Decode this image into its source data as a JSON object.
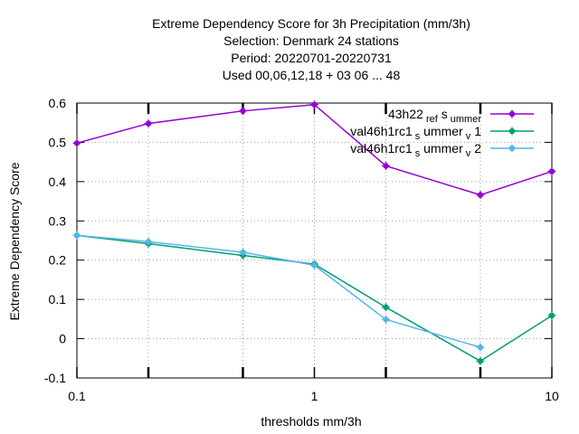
{
  "chart_data": {
    "type": "line",
    "title_lines": [
      "Extreme Dependency Score  for 3h Precipitation (mm/3h)",
      "Selection: Denmark      24 stations",
      "Period: 20220701-20220731",
      "Used  00,06,12,18  + 03 06 ... 48"
    ],
    "xlabel": "thresholds mm/3h",
    "ylabel": "Extreme Dependency Score",
    "x_scale": "log",
    "xlim": [
      0.1,
      10
    ],
    "ylim": [
      -0.1,
      0.6
    ],
    "x_ticks": [
      {
        "value": 0.1,
        "label": "0.1"
      },
      {
        "value": 1,
        "label": "1"
      },
      {
        "value": 10,
        "label": "10"
      }
    ],
    "x_minor_ticks": [
      0.2,
      0.5,
      2,
      5
    ],
    "y_ticks": [
      {
        "value": -0.1,
        "label": "-0.1"
      },
      {
        "value": 0,
        "label": "0"
      },
      {
        "value": 0.1,
        "label": "0.1"
      },
      {
        "value": 0.2,
        "label": "0.2"
      },
      {
        "value": 0.3,
        "label": "0.3"
      },
      {
        "value": 0.4,
        "label": "0.4"
      },
      {
        "value": 0.5,
        "label": "0.5"
      },
      {
        "value": 0.6,
        "label": "0.6"
      }
    ],
    "grid": true,
    "legend_position": "top-right",
    "series": [
      {
        "name_base": "43h22",
        "name_parts": [
          {
            "text": "ref",
            "sub": true
          },
          {
            "text": "s",
            "sub": false
          },
          {
            "text": "ummer",
            "sub": true
          }
        ],
        "color": "#9400d3",
        "x": [
          0.1,
          0.2,
          0.5,
          1,
          2,
          5,
          10
        ],
        "y": [
          0.498,
          0.548,
          0.58,
          0.596,
          0.44,
          0.366,
          0.426
        ]
      },
      {
        "name_base": "val46h1rc1",
        "name_parts": [
          {
            "text": "s",
            "sub": true
          },
          {
            "text": "ummer",
            "sub": false
          },
          {
            "text": "v",
            "sub": true
          },
          {
            "text": "1",
            "sub": false
          }
        ],
        "color": "#009e73",
        "x": [
          0.1,
          0.2,
          0.5,
          1,
          2,
          5,
          10
        ],
        "y": [
          0.263,
          0.242,
          0.212,
          0.19,
          0.08,
          -0.057,
          0.059
        ]
      },
      {
        "name_base": "val46h1rc1",
        "name_parts": [
          {
            "text": "s",
            "sub": true
          },
          {
            "text": "ummer",
            "sub": false
          },
          {
            "text": "v",
            "sub": true
          },
          {
            "text": "2",
            "sub": false
          }
        ],
        "color": "#56b4e9",
        "x": [
          0.1,
          0.2,
          0.5,
          1,
          2,
          5
        ],
        "y": [
          0.263,
          0.247,
          0.22,
          0.187,
          0.049,
          -0.022
        ]
      }
    ]
  }
}
